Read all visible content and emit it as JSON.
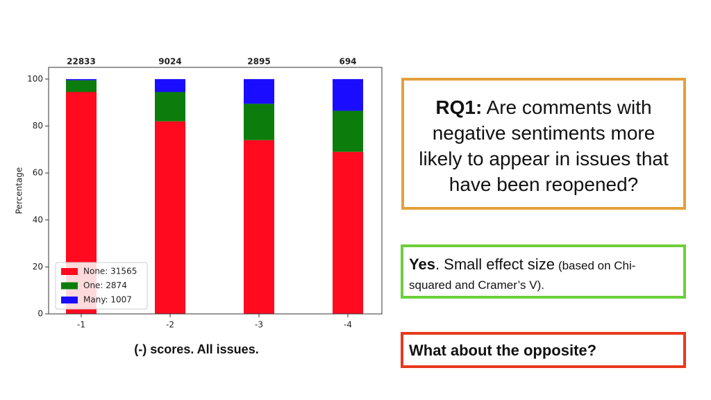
{
  "chart_data": {
    "type": "stacked_bar",
    "categories": [
      "-1",
      "-2",
      "-3",
      "-4"
    ],
    "series": [
      {
        "name": "None: 31565",
        "color": "#ff0a1e",
        "values": [
          94.5,
          82,
          74,
          69
        ]
      },
      {
        "name": "One: 2874",
        "color": "#0c7d0c",
        "values": [
          5,
          12.5,
          15.5,
          17.5
        ]
      },
      {
        "name": "Many: 1007",
        "color": "#1a0dff",
        "values": [
          0.5,
          5.5,
          10.5,
          13.5
        ]
      }
    ],
    "top_labels": [
      "22833",
      "9024",
      "2895",
      "694"
    ],
    "ylabel": "Percentage",
    "ylim": [
      0,
      105
    ],
    "yticks": [
      0,
      20,
      40,
      60,
      80,
      100
    ],
    "grid": false,
    "legend": "lower left"
  },
  "caption": "(-) scores. All issues.",
  "question": {
    "label": "RQ1:",
    "text": "Are comments with negative sentiments more likely to appear in issues that have been reopened?"
  },
  "answer": {
    "bold": "Yes",
    "text": ". Small effect size",
    "note": "(based on Chi-squared and Cramer’s V)."
  },
  "followup": "What about the opposite?"
}
